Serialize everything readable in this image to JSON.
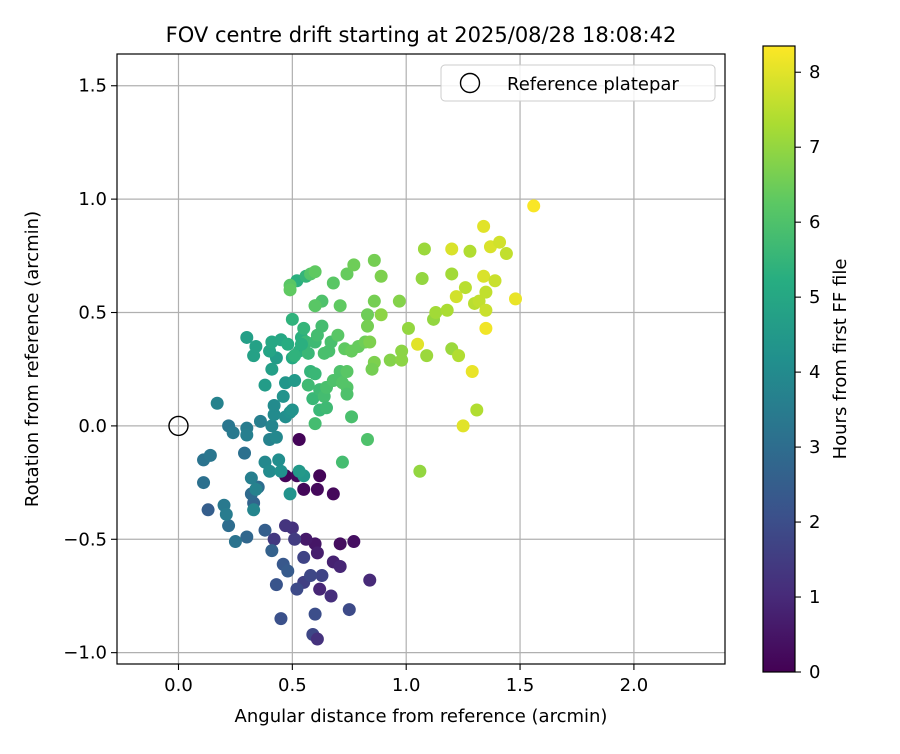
{
  "chart_data": {
    "type": "scatter",
    "title": "FOV centre drift starting at 2025/08/28 18:08:42",
    "xlabel": "Angular distance from reference (arcmin)",
    "ylabel": "Rotation from reference (arcmin)",
    "xlim": [
      -0.27,
      2.4
    ],
    "ylim": [
      -1.05,
      1.64
    ],
    "xticks": [
      0.0,
      0.5,
      1.0,
      1.5,
      2.0
    ],
    "xtick_labels": [
      "0.0",
      "0.5",
      "1.0",
      "1.5",
      "2.0"
    ],
    "yticks": [
      -1.0,
      -0.5,
      0.0,
      0.5,
      1.0,
      1.5
    ],
    "ytick_labels": [
      "−1.0",
      "−0.5",
      "0.0",
      "0.5",
      "1.0",
      "1.5"
    ],
    "grid": true,
    "legend": {
      "placement": "top-right",
      "entries": [
        "Reference platepar"
      ]
    },
    "reference_point": {
      "x": 0.0,
      "y": 0.0,
      "label": "Reference platepar"
    },
    "colorbar": {
      "label": "Hours from first FF file",
      "range": [
        0,
        8.35
      ],
      "ticks": [
        0,
        1,
        2,
        3,
        4,
        5,
        6,
        7,
        8
      ],
      "tick_labels": [
        "0",
        "1",
        "2",
        "3",
        "4",
        "5",
        "6",
        "7",
        "8"
      ],
      "colormap": "viridis"
    },
    "points": [
      [
        0.47,
        -0.22,
        0.1
      ],
      [
        0.52,
        -0.22,
        0.2
      ],
      [
        0.55,
        -0.28,
        0.15
      ],
      [
        0.61,
        -0.28,
        0.2
      ],
      [
        0.62,
        -0.22,
        0.1
      ],
      [
        0.68,
        -0.3,
        0.2
      ],
      [
        0.53,
        -0.06,
        0.1
      ],
      [
        0.71,
        -0.52,
        0.3
      ],
      [
        0.77,
        -0.51,
        0.35
      ],
      [
        0.6,
        -0.52,
        0.5
      ],
      [
        0.56,
        -0.5,
        0.6
      ],
      [
        0.61,
        -0.56,
        0.7
      ],
      [
        0.68,
        -0.6,
        0.8
      ],
      [
        0.71,
        -0.62,
        0.9
      ],
      [
        0.84,
        -0.68,
        1.0
      ],
      [
        0.62,
        -0.72,
        0.9
      ],
      [
        0.67,
        -0.75,
        1.1
      ],
      [
        0.5,
        -0.45,
        1.2
      ],
      [
        0.47,
        -0.44,
        1.3
      ],
      [
        0.42,
        -0.5,
        1.4
      ],
      [
        0.51,
        -0.5,
        1.5
      ],
      [
        0.55,
        -0.69,
        1.6
      ],
      [
        0.55,
        -0.58,
        1.7
      ],
      [
        0.63,
        -0.66,
        1.7
      ],
      [
        0.58,
        -0.66,
        1.8
      ],
      [
        0.52,
        -0.72,
        1.9
      ],
      [
        0.75,
        -0.81,
        1.9
      ],
      [
        0.6,
        -0.83,
        2.0
      ],
      [
        0.59,
        -0.92,
        1.8
      ],
      [
        0.61,
        -0.94,
        1.2
      ],
      [
        0.45,
        -0.85,
        2.1
      ],
      [
        0.43,
        -0.7,
        2.2
      ],
      [
        0.46,
        -0.61,
        2.3
      ],
      [
        0.48,
        -0.64,
        2.4
      ],
      [
        0.38,
        -0.46,
        2.5
      ],
      [
        0.41,
        -0.55,
        2.6
      ],
      [
        0.33,
        -0.34,
        2.7
      ],
      [
        0.3,
        -0.49,
        2.8
      ],
      [
        0.32,
        -0.3,
        2.9
      ],
      [
        0.35,
        -0.27,
        3.0
      ],
      [
        0.29,
        -0.12,
        3.1
      ],
      [
        0.22,
        -0.44,
        3.0
      ],
      [
        0.25,
        -0.51,
        3.2
      ],
      [
        0.13,
        -0.37,
        2.5
      ],
      [
        0.11,
        -0.25,
        3.1
      ],
      [
        0.11,
        -0.15,
        3.2
      ],
      [
        0.14,
        -0.13,
        3.3
      ],
      [
        0.2,
        -0.35,
        3.4
      ],
      [
        0.21,
        -0.39,
        3.5
      ],
      [
        0.32,
        -0.23,
        3.6
      ],
      [
        0.34,
        -0.28,
        3.7
      ],
      [
        0.33,
        -0.37,
        3.8
      ],
      [
        0.38,
        -0.16,
        3.9
      ],
      [
        0.4,
        -0.2,
        4.0
      ],
      [
        0.44,
        -0.15,
        4.1
      ],
      [
        0.45,
        -0.2,
        4.2
      ],
      [
        0.49,
        -0.3,
        4.3
      ],
      [
        0.55,
        -0.22,
        4.4
      ],
      [
        0.53,
        -0.2,
        4.5
      ],
      [
        0.22,
        0.0,
        3.3
      ],
      [
        0.24,
        -0.03,
        3.4
      ],
      [
        0.3,
        -0.01,
        3.5
      ],
      [
        0.3,
        -0.04,
        3.6
      ],
      [
        0.36,
        0.02,
        3.6
      ],
      [
        0.4,
        -0.06,
        3.7
      ],
      [
        0.41,
        0.0,
        3.8
      ],
      [
        0.43,
        -0.05,
        3.9
      ],
      [
        0.42,
        0.05,
        4.0
      ],
      [
        0.42,
        0.09,
        4.0
      ],
      [
        0.47,
        0.04,
        4.1
      ],
      [
        0.49,
        0.06,
        4.2
      ],
      [
        0.5,
        0.07,
        4.3
      ],
      [
        0.46,
        0.13,
        4.3
      ],
      [
        0.47,
        0.19,
        4.4
      ],
      [
        0.51,
        0.2,
        4.5
      ],
      [
        0.38,
        0.18,
        4.6
      ],
      [
        0.41,
        0.25,
        4.7
      ],
      [
        0.43,
        0.3,
        4.6
      ],
      [
        0.3,
        0.39,
        4.7
      ],
      [
        0.33,
        0.31,
        4.8
      ],
      [
        0.34,
        0.35,
        4.8
      ],
      [
        0.4,
        0.33,
        4.9
      ],
      [
        0.41,
        0.37,
        5.0
      ],
      [
        0.45,
        0.38,
        5.0
      ],
      [
        0.5,
        0.3,
        5.1
      ],
      [
        0.48,
        0.36,
        5.2
      ],
      [
        0.53,
        0.33,
        5.3
      ],
      [
        0.54,
        0.39,
        5.3
      ],
      [
        0.5,
        0.47,
        5.4
      ],
      [
        0.52,
        0.64,
        5.3
      ],
      [
        0.56,
        0.66,
        5.5
      ],
      [
        0.55,
        0.43,
        5.5
      ],
      [
        0.56,
        0.37,
        5.6
      ],
      [
        0.57,
        0.32,
        5.6
      ],
      [
        0.6,
        0.37,
        5.7
      ],
      [
        0.63,
        0.44,
        5.8
      ],
      [
        0.61,
        0.4,
        5.8
      ],
      [
        0.64,
        0.32,
        5.9
      ],
      [
        0.66,
        0.33,
        5.9
      ],
      [
        0.67,
        0.37,
        5.9
      ],
      [
        0.63,
        0.55,
        6.0
      ],
      [
        0.6,
        0.53,
        6.1
      ],
      [
        0.58,
        0.67,
        6.1
      ],
      [
        0.49,
        0.62,
        6.2
      ],
      [
        0.68,
        0.63,
        6.2
      ],
      [
        0.7,
        0.4,
        6.2
      ],
      [
        0.71,
        0.53,
        6.3
      ],
      [
        0.73,
        0.34,
        6.3
      ],
      [
        0.76,
        0.33,
        6.4
      ],
      [
        0.79,
        0.35,
        6.4
      ],
      [
        0.82,
        0.37,
        6.5
      ],
      [
        0.58,
        0.24,
        5.5
      ],
      [
        0.6,
        0.23,
        5.6
      ],
      [
        0.57,
        0.18,
        5.7
      ],
      [
        0.59,
        0.12,
        5.6
      ],
      [
        0.62,
        0.16,
        5.7
      ],
      [
        0.64,
        0.13,
        5.8
      ],
      [
        0.65,
        0.17,
        5.9
      ],
      [
        0.68,
        0.2,
        6.0
      ],
      [
        0.71,
        0.24,
        6.0
      ],
      [
        0.72,
        0.19,
        6.1
      ],
      [
        0.74,
        0.17,
        6.1
      ],
      [
        0.74,
        0.24,
        6.2
      ],
      [
        0.62,
        0.07,
        5.6
      ],
      [
        0.65,
        0.08,
        5.7
      ],
      [
        0.6,
        0.01,
        5.8
      ],
      [
        0.76,
        0.04,
        5.9
      ],
      [
        0.74,
        0.14,
        6.0
      ],
      [
        0.72,
        -0.16,
        5.8
      ],
      [
        0.83,
        -0.06,
        6.0
      ],
      [
        0.54,
        0.36,
        5.3
      ],
      [
        0.51,
        0.31,
        5.4
      ],
      [
        0.6,
        0.53,
        6.2
      ],
      [
        0.6,
        0.68,
        6.3
      ],
      [
        0.74,
        0.67,
        6.4
      ],
      [
        0.77,
        0.71,
        6.5
      ],
      [
        0.86,
        0.73,
        6.6
      ],
      [
        0.89,
        0.66,
        6.7
      ],
      [
        0.86,
        0.55,
        6.6
      ],
      [
        0.83,
        0.49,
        6.5
      ],
      [
        0.83,
        0.44,
        6.6
      ],
      [
        0.84,
        0.37,
        6.7
      ],
      [
        0.86,
        0.28,
        6.7
      ],
      [
        0.85,
        0.25,
        6.6
      ],
      [
        0.93,
        0.29,
        6.8
      ],
      [
        0.89,
        0.49,
        6.9
      ],
      [
        0.97,
        0.55,
        6.8
      ],
      [
        0.98,
        0.29,
        6.9
      ],
      [
        0.98,
        0.33,
        6.9
      ],
      [
        1.01,
        0.43,
        7.0
      ],
      [
        1.07,
        0.65,
        7.0
      ],
      [
        1.08,
        0.78,
        7.1
      ],
      [
        1.09,
        0.31,
        7.1
      ],
      [
        1.12,
        0.47,
        7.0
      ],
      [
        1.13,
        0.5,
        7.2
      ],
      [
        1.18,
        0.51,
        7.3
      ],
      [
        1.2,
        0.67,
        7.2
      ],
      [
        1.2,
        0.34,
        7.1
      ],
      [
        1.2,
        0.78,
        7.9
      ],
      [
        1.22,
        0.57,
        7.8
      ],
      [
        1.23,
        0.31,
        7.4
      ],
      [
        1.26,
        0.61,
        7.5
      ],
      [
        1.28,
        0.77,
        7.4
      ],
      [
        1.3,
        0.54,
        7.5
      ],
      [
        1.32,
        0.55,
        7.6
      ],
      [
        1.34,
        0.88,
        8.0
      ],
      [
        1.34,
        0.66,
        7.9
      ],
      [
        1.35,
        0.59,
        7.6
      ],
      [
        1.35,
        0.51,
        7.7
      ],
      [
        1.37,
        0.79,
        7.9
      ],
      [
        1.39,
        0.64,
        7.7
      ],
      [
        1.41,
        0.81,
        7.8
      ],
      [
        1.44,
        0.76,
        7.6
      ],
      [
        1.48,
        0.56,
        8.1
      ],
      [
        1.56,
        0.97,
        8.3
      ],
      [
        1.35,
        0.43,
        8.2
      ],
      [
        1.29,
        0.24,
        8.1
      ],
      [
        1.31,
        0.07,
        7.4
      ],
      [
        1.25,
        0.0,
        8.0
      ],
      [
        1.06,
        -0.2,
        7.0
      ],
      [
        1.05,
        0.36,
        8.0
      ],
      [
        0.17,
        0.1,
        3.7
      ],
      [
        0.49,
        0.6,
        6.3
      ]
    ]
  }
}
